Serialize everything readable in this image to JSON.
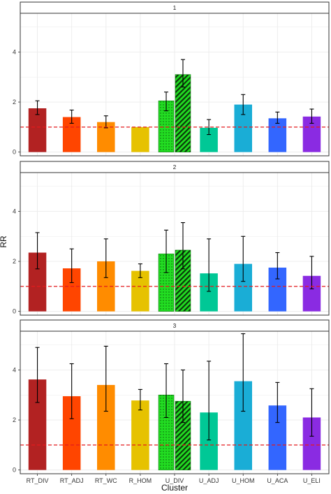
{
  "chart_data": {
    "type": "bar",
    "xlabel": "Cluster",
    "ylabel": "RR",
    "ylim": [
      -0.15,
      5.55
    ],
    "yticks": [
      0,
      2,
      4
    ],
    "reference_line": 1,
    "reference_color": "#e41a1c",
    "grid": true,
    "categories": [
      "RT_DIV",
      "RT_ADJ",
      "RT_WC",
      "R_HOM",
      "U_DIV",
      "U_ADJ",
      "U_HOM",
      "U_ACA",
      "U_ELI"
    ],
    "colors": [
      "#b22222",
      "#ff4500",
      "#ff8c00",
      "#e6c200",
      "#22dd22",
      "#00c896",
      "#1aadd6",
      "#3366ff",
      "#8a2be2"
    ],
    "u_div_patterns": [
      "dots",
      "stripes"
    ],
    "panels": [
      {
        "label": "1",
        "bars": [
          {
            "category": "RT_DIV",
            "value": 1.75,
            "lower": 1.5,
            "upper": 2.05
          },
          {
            "category": "RT_ADJ",
            "value": 1.4,
            "lower": 1.15,
            "upper": 1.68
          },
          {
            "category": "RT_WC",
            "value": 1.2,
            "lower": 0.97,
            "upper": 1.45
          },
          {
            "category": "R_HOM",
            "value": 1.0
          },
          {
            "category": "U_DIV",
            "value": 2.05,
            "lower": 1.65,
            "upper": 2.4,
            "pattern": "dots"
          },
          {
            "category": "U_DIV",
            "value": 3.1,
            "lower": 2.6,
            "upper": 3.7,
            "pattern": "stripes"
          },
          {
            "category": "U_ADJ",
            "value": 0.97,
            "lower": 0.7,
            "upper": 1.3
          },
          {
            "category": "U_HOM",
            "value": 1.9,
            "lower": 1.5,
            "upper": 2.3
          },
          {
            "category": "U_ACA",
            "value": 1.35,
            "lower": 1.15,
            "upper": 1.6
          },
          {
            "category": "U_ELI",
            "value": 1.42,
            "lower": 1.15,
            "upper": 1.72
          }
        ]
      },
      {
        "label": "2",
        "bars": [
          {
            "category": "RT_DIV",
            "value": 2.35,
            "lower": 1.7,
            "upper": 3.15
          },
          {
            "category": "RT_ADJ",
            "value": 1.72,
            "lower": 1.15,
            "upper": 2.5
          },
          {
            "category": "RT_WC",
            "value": 2.0,
            "lower": 1.35,
            "upper": 2.9
          },
          {
            "category": "R_HOM",
            "value": 1.62,
            "lower": 1.35,
            "upper": 1.9
          },
          {
            "category": "U_DIV",
            "value": 2.3,
            "lower": 1.55,
            "upper": 3.25,
            "pattern": "dots"
          },
          {
            "category": "U_DIV",
            "value": 2.45,
            "lower": 1.7,
            "upper": 3.55,
            "pattern": "stripes"
          },
          {
            "category": "U_ADJ",
            "value": 1.52,
            "lower": 0.8,
            "upper": 2.9
          },
          {
            "category": "U_HOM",
            "value": 1.9,
            "lower": 1.2,
            "upper": 3.0
          },
          {
            "category": "U_ACA",
            "value": 1.75,
            "lower": 1.3,
            "upper": 2.35
          },
          {
            "category": "U_ELI",
            "value": 1.42,
            "lower": 0.9,
            "upper": 2.2
          }
        ]
      },
      {
        "label": "3",
        "bars": [
          {
            "category": "RT_DIV",
            "value": 3.62,
            "lower": 2.7,
            "upper": 4.9
          },
          {
            "category": "RT_ADJ",
            "value": 2.95,
            "lower": 2.05,
            "upper": 4.25
          },
          {
            "category": "RT_WC",
            "value": 3.4,
            "lower": 2.35,
            "upper": 4.95
          },
          {
            "category": "R_HOM",
            "value": 2.78,
            "lower": 2.4,
            "upper": 3.22
          },
          {
            "category": "U_DIV",
            "value": 3.0,
            "lower": 2.1,
            "upper": 4.25,
            "pattern": "dots"
          },
          {
            "category": "U_DIV",
            "value": 2.75,
            "lower": 1.9,
            "upper": 4.0,
            "pattern": "stripes"
          },
          {
            "category": "U_ADJ",
            "value": 2.3,
            "lower": 1.2,
            "upper": 4.35
          },
          {
            "category": "U_HOM",
            "value": 3.55,
            "lower": 2.35,
            "upper": 5.45
          },
          {
            "category": "U_ACA",
            "value": 2.58,
            "lower": 1.9,
            "upper": 3.5
          },
          {
            "category": "U_ELI",
            "value": 2.1,
            "lower": 1.35,
            "upper": 3.25
          }
        ]
      }
    ]
  }
}
